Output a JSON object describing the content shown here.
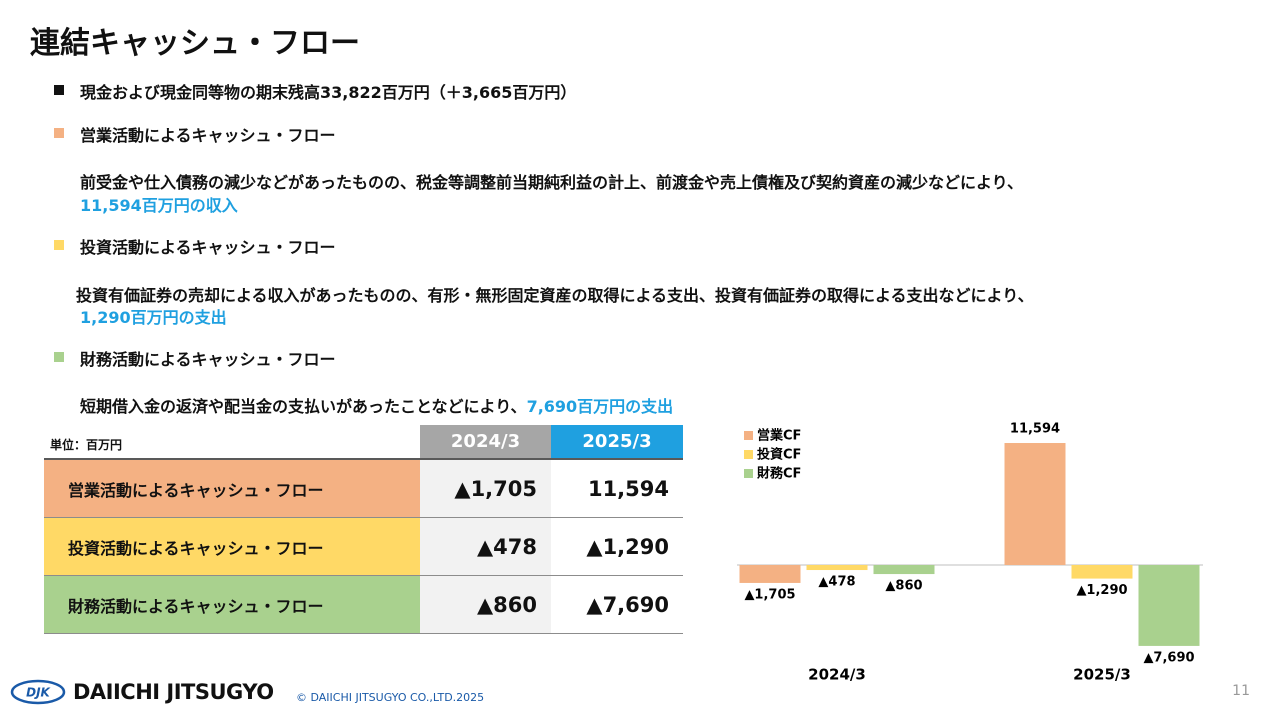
{
  "title": "連結キャッシュ・フロー",
  "summary": "現金および現金同等物の期末残高33,822百万円（＋3,665百万円）",
  "sections": [
    {
      "heading": "営業活動によるキャッシュ・フロー",
      "body": "前受金や仕入債務の減少などがあったものの、税金等調整前当期純利益の計上、前渡金や売上債権及び契約資産の減少などにより、",
      "highlight": "11,594百万円の収入"
    },
    {
      "heading": "投資活動によるキャッシュ・フロー",
      "body": "投資有価証券の売却による収入があったものの、有形・無形固定資産の取得による支出、投資有価証券の取得による支出などにより、",
      "highlight": "1,290百万円の支出"
    },
    {
      "heading": "財務活動によるキャッシュ・フロー",
      "body": "短期借入金の返済や配当金の支払いがあったことなどにより、",
      "highlight": "7,690百万円の支出"
    }
  ],
  "table": {
    "unit": "単位：百万円",
    "columns": [
      "2024/3",
      "2025/3"
    ],
    "rows": [
      [
        "営業活動によるキャッシュ・フロー",
        "▲1,705",
        "11,594"
      ],
      [
        "投資活動によるキャッシュ・フロー",
        "▲478",
        "▲1,290"
      ],
      [
        "財務活動によるキャッシュ・フロー",
        "▲860",
        "▲7,690"
      ]
    ]
  },
  "chart_data": {
    "type": "bar",
    "categories": [
      "2024/3",
      "2025/3"
    ],
    "series": [
      {
        "name": "営業CF",
        "color": "#f4b183",
        "values": [
          -1705,
          11594
        ],
        "value_labels": [
          "▲1,705",
          "11,594"
        ]
      },
      {
        "name": "投資CF",
        "color": "#ffd966",
        "values": [
          -478,
          -1290
        ],
        "value_labels": [
          "▲478",
          "▲1,290"
        ]
      },
      {
        "name": "財務CF",
        "color": "#a9d18e",
        "values": [
          -860,
          -7690
        ],
        "value_labels": [
          "▲860",
          "▲7,690"
        ]
      }
    ],
    "ylim": [
      -9000,
      14000
    ]
  },
  "footer": {
    "logo_mark": "DJK",
    "logo": "DAIICHI JITSUGYO",
    "copyright": "© DAIICHI JITSUGYO CO.,LTD.2025",
    "page": "11"
  }
}
